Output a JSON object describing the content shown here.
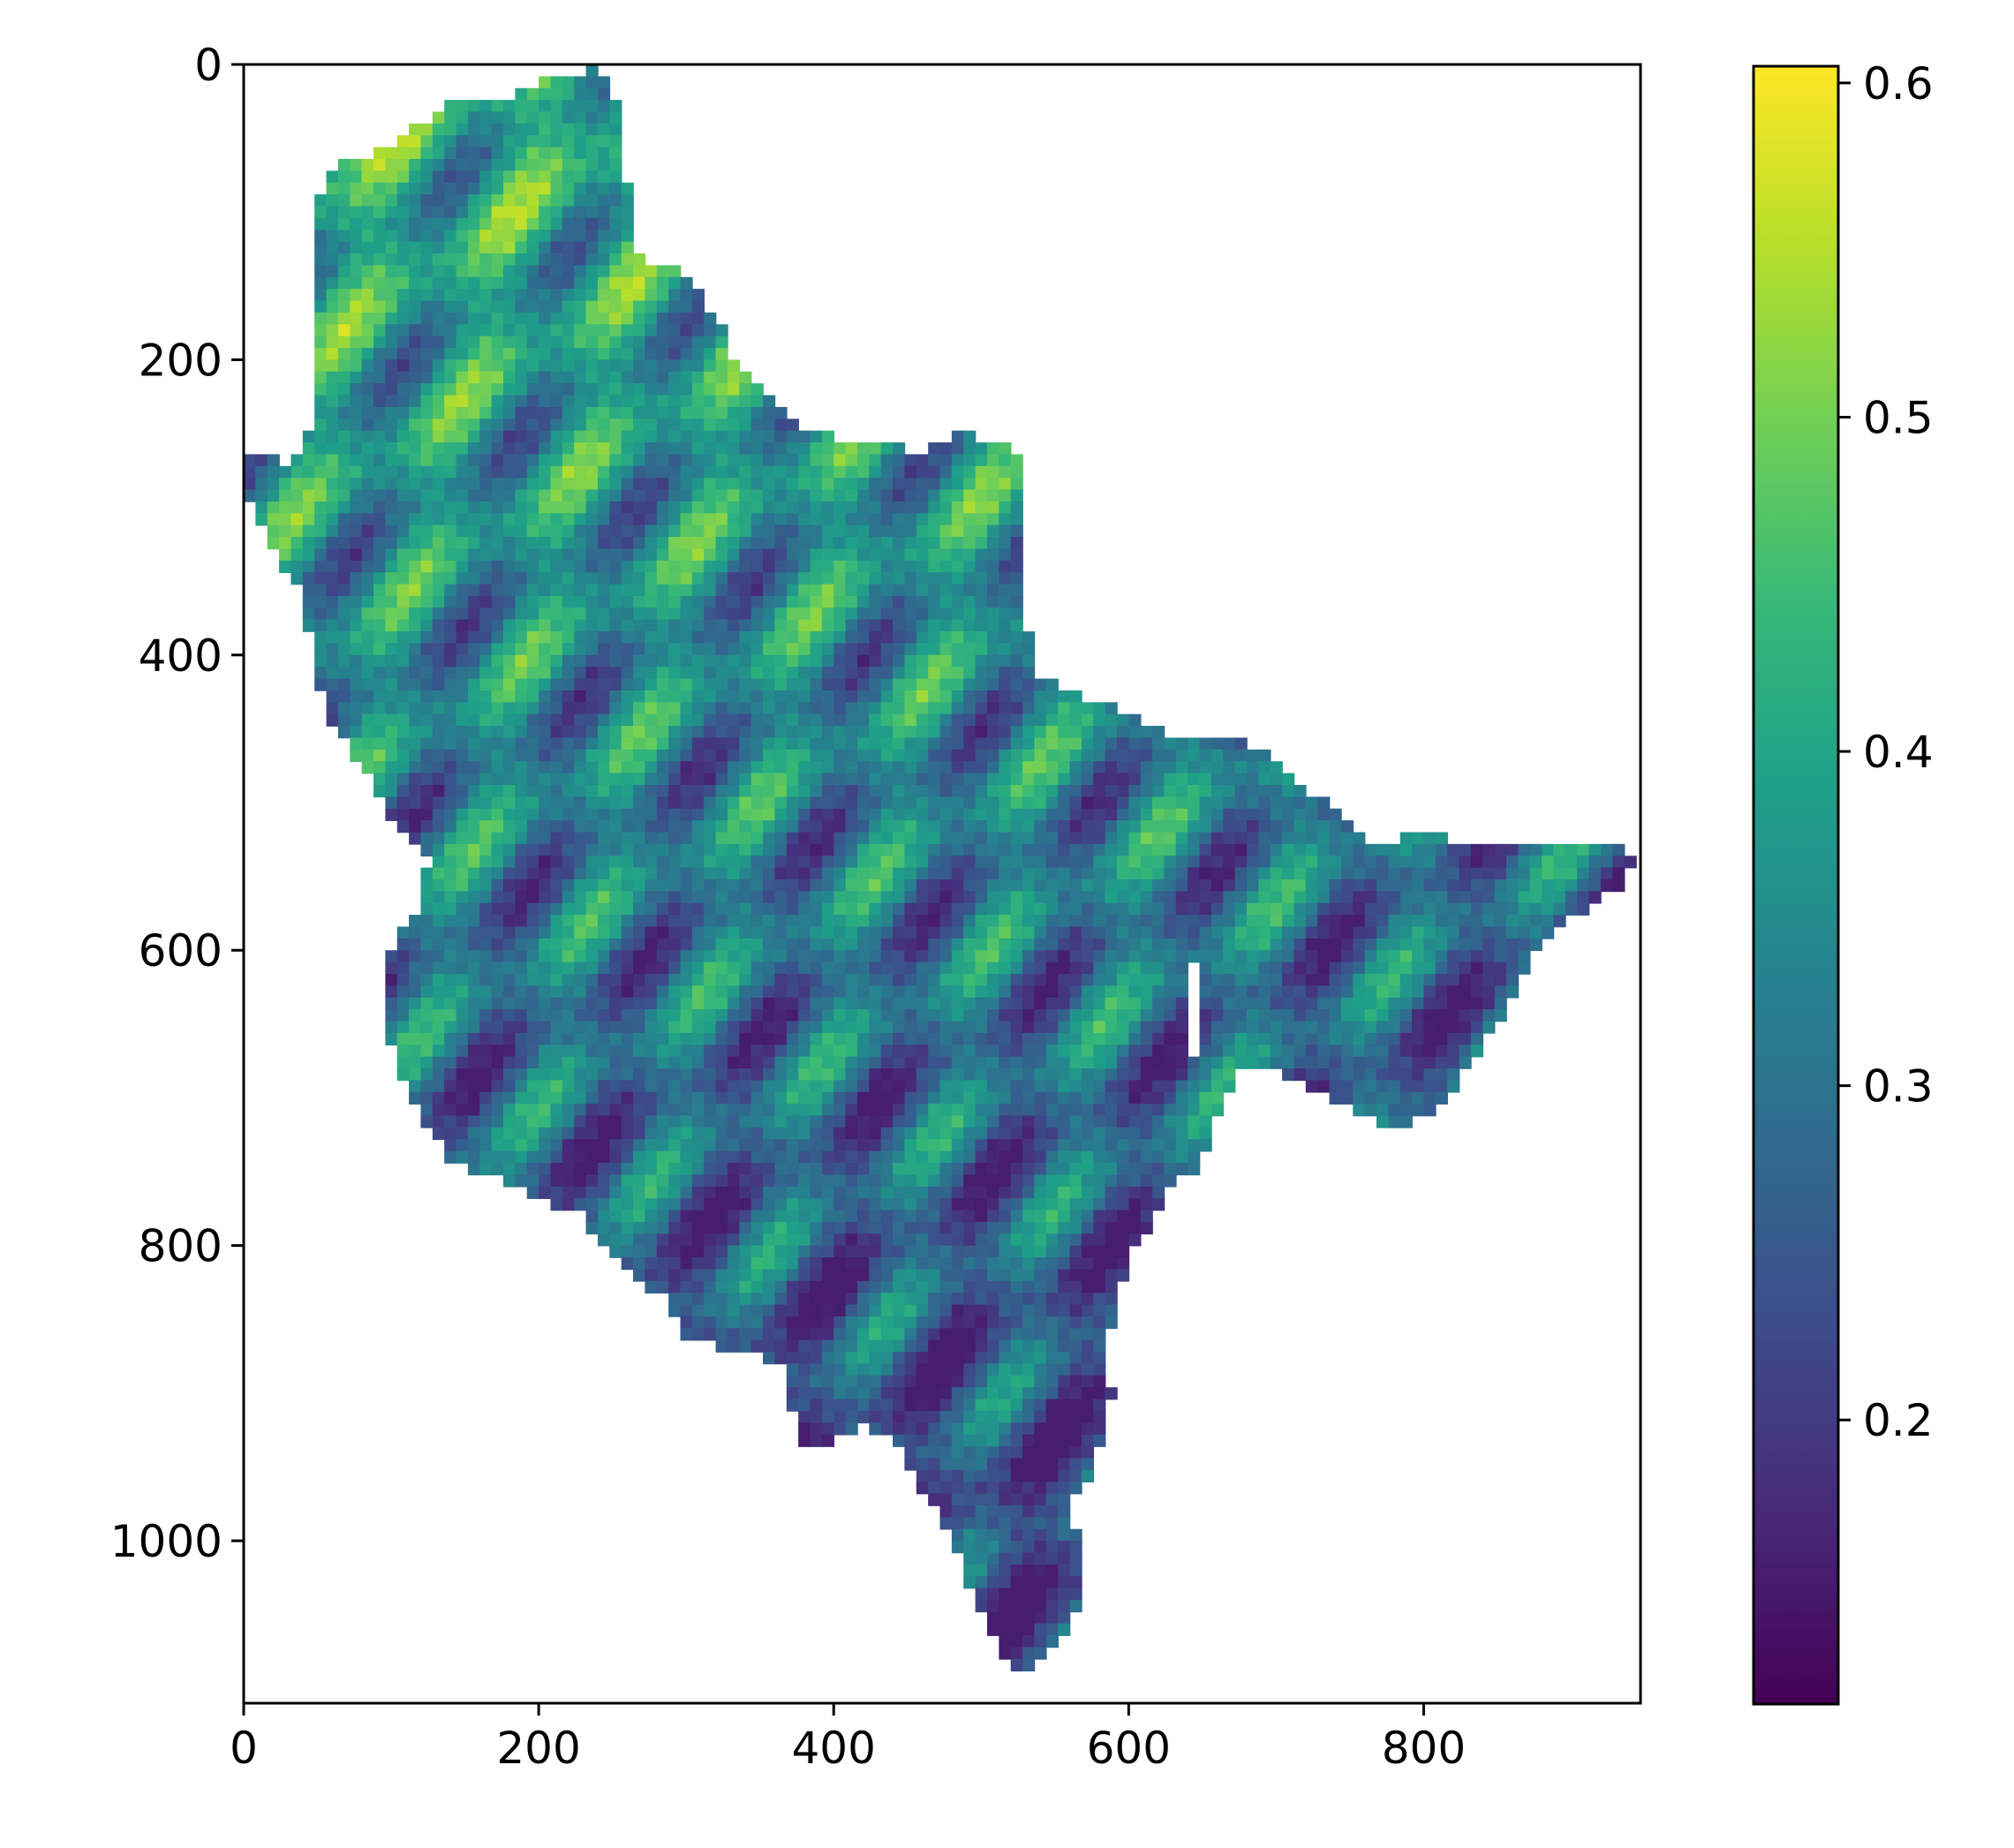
{
  "chart_data": {
    "type": "heatmap",
    "title": "",
    "xlabel": "",
    "ylabel": "",
    "xlim": [
      0,
      947
    ],
    "ylim": [
      1110,
      0
    ],
    "x_ticks": [
      0,
      200,
      400,
      600,
      800
    ],
    "x_tick_labels": [
      "0",
      "200",
      "400",
      "600",
      "800"
    ],
    "y_ticks": [
      0,
      200,
      400,
      600,
      800,
      1000
    ],
    "y_tick_labels": [
      "0",
      "200",
      "400",
      "600",
      "800",
      "1000"
    ],
    "colormap": "viridis",
    "colormap_stops": [
      "#440154",
      "#482878",
      "#3e4989",
      "#31688e",
      "#26828e",
      "#1f9e89",
      "#35b779",
      "#6ece58",
      "#b5de2b",
      "#fde725"
    ],
    "colorbar": {
      "vmin": 0.115,
      "vmax": 0.605,
      "ticks": [
        0.2,
        0.3,
        0.4,
        0.5,
        0.6
      ],
      "tick_labels": [
        "0.2",
        "0.3",
        "0.4",
        "0.5",
        "0.6"
      ],
      "location": "right"
    },
    "mask_outline": [
      [
        0,
        262
      ],
      [
        12,
        262
      ],
      [
        30,
        275
      ],
      [
        45,
        250
      ],
      [
        45,
        110
      ],
      [
        58,
        70
      ],
      [
        90,
        60
      ],
      [
        120,
        40
      ],
      [
        150,
        20
      ],
      [
        185,
        22
      ],
      [
        200,
        10
      ],
      [
        240,
        2
      ],
      [
        258,
        30
      ],
      [
        262,
        130
      ],
      [
        300,
        140
      ],
      [
        320,
        170
      ],
      [
        335,
        205
      ],
      [
        380,
        250
      ],
      [
        435,
        255
      ],
      [
        455,
        265
      ],
      [
        480,
        250
      ],
      [
        520,
        255
      ],
      [
        530,
        280
      ],
      [
        525,
        335
      ],
      [
        530,
        370
      ],
      [
        535,
        410
      ],
      [
        560,
        425
      ],
      [
        600,
        440
      ],
      [
        640,
        460
      ],
      [
        680,
        460
      ],
      [
        705,
        475
      ],
      [
        720,
        490
      ],
      [
        750,
        510
      ],
      [
        770,
        530
      ],
      [
        800,
        520
      ],
      [
        840,
        530
      ],
      [
        890,
        525
      ],
      [
        925,
        530
      ],
      [
        945,
        535
      ],
      [
        930,
        560
      ],
      [
        900,
        580
      ],
      [
        870,
        610
      ],
      [
        850,
        650
      ],
      [
        830,
        680
      ],
      [
        820,
        700
      ],
      [
        800,
        715
      ],
      [
        780,
        720
      ],
      [
        740,
        700
      ],
      [
        720,
        690
      ],
      [
        700,
        680
      ],
      [
        680,
        678
      ],
      [
        665,
        700
      ],
      [
        650,
        745
      ],
      [
        630,
        760
      ],
      [
        615,
        785
      ],
      [
        600,
        810
      ],
      [
        590,
        840
      ],
      [
        585,
        880
      ],
      [
        590,
        900
      ],
      [
        580,
        940
      ],
      [
        575,
        960
      ],
      [
        560,
        975
      ],
      [
        565,
        1000
      ],
      [
        565,
        1045
      ],
      [
        560,
        1065
      ],
      [
        545,
        1075
      ],
      [
        525,
        1090
      ],
      [
        510,
        1070
      ],
      [
        495,
        1035
      ],
      [
        480,
        1000
      ],
      [
        470,
        980
      ],
      [
        455,
        960
      ],
      [
        445,
        935
      ],
      [
        420,
        920
      ],
      [
        400,
        935
      ],
      [
        380,
        940
      ],
      [
        372,
        915
      ],
      [
        368,
        880
      ],
      [
        330,
        870
      ],
      [
        300,
        860
      ],
      [
        290,
        840
      ],
      [
        265,
        820
      ],
      [
        245,
        800
      ],
      [
        230,
        780
      ],
      [
        200,
        770
      ],
      [
        170,
        752
      ],
      [
        140,
        745
      ],
      [
        125,
        720
      ],
      [
        110,
        695
      ],
      [
        100,
        665
      ],
      [
        95,
        635
      ],
      [
        100,
        600
      ],
      [
        120,
        570
      ],
      [
        125,
        540
      ],
      [
        105,
        520
      ],
      [
        90,
        490
      ],
      [
        75,
        470
      ],
      [
        55,
        440
      ],
      [
        45,
        390
      ],
      [
        40,
        360
      ],
      [
        25,
        340
      ],
      [
        5,
        300
      ],
      [
        0,
        262
      ]
    ],
    "gap_segment": {
      "x": 642,
      "y": [
        610,
        672
      ]
    }
  }
}
